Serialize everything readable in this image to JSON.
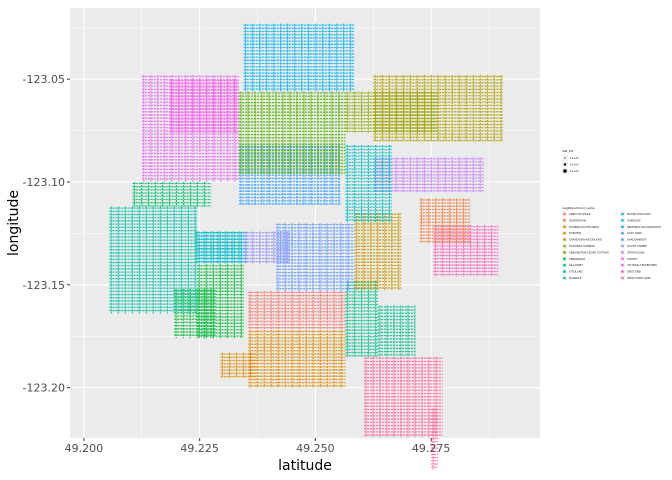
{
  "chart_data": {
    "type": "scatter",
    "title": "",
    "xlabel": "latitude",
    "ylabel": "longitude",
    "xlim": [
      49.197,
      49.2985
    ],
    "ylim": [
      -123.2245,
      -123.0154
    ],
    "x_ticks": [
      49.2,
      49.225,
      49.25,
      49.275
    ],
    "x_tick_labels": [
      "49.200",
      "49.225",
      "49.250",
      "49.275"
    ],
    "y_ticks": [
      -123.05,
      -123.1,
      -123.15,
      -123.2
    ],
    "y_tick_labels": [
      "-123.05",
      "-123.10",
      "-123.15",
      "-123.20"
    ],
    "grid": true,
    "size_legend": {
      "title": "dist_tot",
      "levels": [
        "1e+00",
        "1e+02",
        "1e+04"
      ]
    },
    "color_legend": {
      "title": "neighbourhood_name",
      "position": "right",
      "categories": [
        {
          "name": "ARBUTUS RIDGE",
          "color": "#F8766D"
        },
        {
          "name": "DOWNTOWN",
          "color": "#EE8043"
        },
        {
          "name": "DUNBAR-SOUTHLANDS",
          "color": "#DE8C00"
        },
        {
          "name": "FAIRVIEW",
          "color": "#C99800"
        },
        {
          "name": "GRANDVIEW-WOODLAND",
          "color": "#AFA100"
        },
        {
          "name": "HASTINGS-SUNRISE",
          "color": "#8BAB00"
        },
        {
          "name": "KENSINGTON-CEDAR COTTAGE",
          "color": "#53B400"
        },
        {
          "name": "KERRISDALE",
          "color": "#00BA38"
        },
        {
          "name": "KILLARNEY",
          "color": "#00BE6C"
        },
        {
          "name": "KITSILANO",
          "color": "#00C08B"
        },
        {
          "name": "MARPOLE",
          "color": "#00C1A7"
        },
        {
          "name": "MOUNT PLEASANT",
          "color": "#00BFC4"
        },
        {
          "name": "OAKRIDGE",
          "color": "#00BADE"
        },
        {
          "name": "RENFREW-COLLINGWOOD",
          "color": "#00B0F6"
        },
        {
          "name": "RILEY PARK",
          "color": "#35A2FF"
        },
        {
          "name": "SHAUGHNESSY",
          "color": "#619CFF"
        },
        {
          "name": "SOUTH CAMBIE",
          "color": "#9590FF"
        },
        {
          "name": "STRATHCONA",
          "color": "#C77CFF"
        },
        {
          "name": "SUNSET",
          "color": "#E76BF3"
        },
        {
          "name": "VICTORIA-FRASERVIEW",
          "color": "#F564E3"
        },
        {
          "name": "WEST END",
          "color": "#FF62BC"
        },
        {
          "name": "WEST POINT GREY",
          "color": "#FF6A98"
        }
      ]
    },
    "regions": [
      {
        "name": "WEST POINT GREY",
        "color": "#FF6A98",
        "bounds": [
          [
            49.2605,
            49.2775,
            -123.2245,
            -123.185
          ],
          [
            49.275,
            49.2765,
            -123.24,
            -123.21
          ]
        ]
      },
      {
        "name": "DUNBAR-SOUTHLANDS",
        "color": "#DE8C00",
        "bounds": [
          [
            49.2355,
            49.2565,
            -123.2,
            -123.172
          ],
          [
            49.2295,
            49.237,
            -123.195,
            -123.183
          ]
        ]
      },
      {
        "name": "ARBUTUS RIDGE",
        "color": "#F8766D",
        "bounds": [
          [
            49.2355,
            49.2565,
            -123.172,
            -123.153
          ]
        ]
      },
      {
        "name": "KERRISDALE",
        "color": "#00BA38",
        "bounds": [
          [
            49.2245,
            49.2345,
            -123.176,
            -123.14
          ],
          [
            49.2195,
            49.2285,
            -123.176,
            -123.152
          ]
        ]
      },
      {
        "name": "KITSILANO",
        "color": "#00C08B",
        "bounds": [
          [
            49.2565,
            49.2635,
            -123.185,
            -123.148
          ],
          [
            49.2635,
            49.2715,
            -123.185,
            -123.16
          ]
        ]
      },
      {
        "name": "MARPOLE",
        "color": "#00C1A7",
        "bounds": [
          [
            49.2055,
            49.2245,
            -123.164,
            -123.112
          ],
          [
            49.224,
            49.2345,
            -123.14,
            -123.124
          ]
        ]
      },
      {
        "name": "OAKRIDGE",
        "color": "#00BADE",
        "bounds": [
          [
            49.2245,
            49.2355,
            -123.14,
            -123.124
          ]
        ]
      },
      {
        "name": "SOUTH CAMBIE",
        "color": "#9590FF",
        "bounds": [
          [
            49.2345,
            49.2445,
            -123.14,
            -123.124
          ]
        ]
      },
      {
        "name": "SHAUGHNESSY",
        "color": "#619CFF",
        "bounds": [
          [
            49.2415,
            49.2585,
            -123.153,
            -123.12
          ]
        ]
      },
      {
        "name": "FAIRVIEW",
        "color": "#C99800",
        "bounds": [
          [
            49.2585,
            49.2685,
            -123.153,
            -123.115
          ]
        ]
      },
      {
        "name": "WEST END",
        "color": "#FF62BC",
        "bounds": [
          [
            49.2755,
            49.2895,
            -123.146,
            -123.121
          ]
        ]
      },
      {
        "name": "DOWNTOWN",
        "color": "#EE8043",
        "bounds": [
          [
            49.2725,
            49.2835,
            -123.13,
            -123.108
          ]
        ]
      },
      {
        "name": "STRATHCONA",
        "color": "#C77CFF",
        "bounds": [
          [
            49.2625,
            49.2865,
            -123.105,
            -123.088
          ]
        ]
      },
      {
        "name": "MOUNT PLEASANT",
        "color": "#00BFC4",
        "bounds": [
          [
            49.2565,
            49.2665,
            -123.12,
            -123.082
          ]
        ]
      },
      {
        "name": "RILEY PARK",
        "color": "#35A2FF",
        "bounds": [
          [
            49.2335,
            49.2555,
            -123.111,
            -123.082
          ]
        ]
      },
      {
        "name": "SUNSET",
        "color": "#E76BF3",
        "bounds": [
          [
            49.2125,
            49.2335,
            -123.1,
            -123.048
          ]
        ]
      },
      {
        "name": "VICTORIA-FRASERVIEW",
        "color": "#F564E3",
        "bounds": [
          [
            49.2185,
            49.2335,
            -123.076,
            -123.05
          ]
        ]
      },
      {
        "name": "KILLARNEY",
        "color": "#00BE6C",
        "bounds": [
          [
            49.2105,
            49.2275,
            -123.112,
            -123.1
          ]
        ]
      },
      {
        "name": "KENSINGTON-CEDAR COTTAGE",
        "color": "#53B400",
        "bounds": [
          [
            49.2335,
            49.2565,
            -123.096,
            -123.056
          ]
        ]
      },
      {
        "name": "HASTINGS-SUNRISE",
        "color": "#8BAB00",
        "bounds": [
          [
            49.2565,
            49.2765,
            -123.076,
            -123.056
          ]
        ]
      },
      {
        "name": "GRANDVIEW-WOODLAND",
        "color": "#AFA100",
        "bounds": [
          [
            49.2625,
            49.2905,
            -123.08,
            -123.048
          ]
        ]
      },
      {
        "name": "RENFREW-COLLINGWOOD",
        "color": "#00B0F6",
        "bounds": [
          [
            49.2345,
            49.2585,
            -123.056,
            -123.023
          ]
        ]
      }
    ]
  }
}
